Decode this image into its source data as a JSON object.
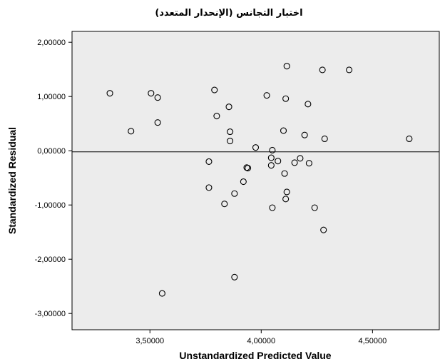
{
  "chart_data": {
    "type": "scatter",
    "title": "اختبار التجانس (الإنحدار المتعدد)",
    "xlabel": "Unstandardized Predicted Value",
    "ylabel": "Standardized Residual",
    "xlim": [
      3.15,
      4.8
    ],
    "ylim": [
      -3.3,
      2.2
    ],
    "x_ticks": [
      {
        "value": 3.5,
        "label": "3,50000"
      },
      {
        "value": 4.0,
        "label": "4,00000"
      },
      {
        "value": 4.5,
        "label": "4,50000"
      }
    ],
    "y_ticks": [
      {
        "value": 2,
        "label": "2,00000"
      },
      {
        "value": 1,
        "label": "1,00000"
      },
      {
        "value": 0,
        "label": "0,00000"
      },
      {
        "value": -1,
        "label": "-1,00000"
      },
      {
        "value": -2,
        "label": "-2,00000"
      },
      {
        "value": -3,
        "label": "-3,00000"
      }
    ],
    "reference_line_y": -0.02,
    "grid": false,
    "plot_background": "#ececec",
    "marker_color": "#000000",
    "points": [
      {
        "x": 3.32,
        "y": 1.06
      },
      {
        "x": 3.415,
        "y": 0.36
      },
      {
        "x": 3.505,
        "y": 1.06
      },
      {
        "x": 3.535,
        "y": 0.98
      },
      {
        "x": 3.535,
        "y": 0.52
      },
      {
        "x": 3.555,
        "y": -2.63
      },
      {
        "x": 3.765,
        "y": -0.2
      },
      {
        "x": 3.765,
        "y": -0.68
      },
      {
        "x": 3.79,
        "y": 1.12
      },
      {
        "x": 3.8,
        "y": 0.64
      },
      {
        "x": 3.835,
        "y": -0.98
      },
      {
        "x": 3.855,
        "y": 0.81
      },
      {
        "x": 3.86,
        "y": 0.35
      },
      {
        "x": 3.86,
        "y": 0.18
      },
      {
        "x": 3.88,
        "y": -0.79
      },
      {
        "x": 3.88,
        "y": -2.33
      },
      {
        "x": 3.92,
        "y": -0.57
      },
      {
        "x": 3.935,
        "y": -0.31
      },
      {
        "x": 3.94,
        "y": -0.32
      },
      {
        "x": 3.975,
        "y": 0.06
      },
      {
        "x": 4.025,
        "y": 1.02
      },
      {
        "x": 4.045,
        "y": -0.13
      },
      {
        "x": 4.045,
        "y": -0.27
      },
      {
        "x": 4.05,
        "y": 0.01
      },
      {
        "x": 4.05,
        "y": -1.05
      },
      {
        "x": 4.075,
        "y": -0.19
      },
      {
        "x": 4.1,
        "y": 0.37
      },
      {
        "x": 4.105,
        "y": -0.42
      },
      {
        "x": 4.11,
        "y": 0.96
      },
      {
        "x": 4.11,
        "y": -0.89
      },
      {
        "x": 4.115,
        "y": 1.56
      },
      {
        "x": 4.115,
        "y": -0.76
      },
      {
        "x": 4.15,
        "y": -0.22
      },
      {
        "x": 4.175,
        "y": -0.14
      },
      {
        "x": 4.195,
        "y": 0.29
      },
      {
        "x": 4.21,
        "y": 0.86
      },
      {
        "x": 4.215,
        "y": -0.23
      },
      {
        "x": 4.24,
        "y": -1.05
      },
      {
        "x": 4.275,
        "y": 1.49
      },
      {
        "x": 4.28,
        "y": -1.46
      },
      {
        "x": 4.285,
        "y": 0.22
      },
      {
        "x": 4.395,
        "y": 1.49
      },
      {
        "x": 4.665,
        "y": 0.22
      }
    ]
  }
}
